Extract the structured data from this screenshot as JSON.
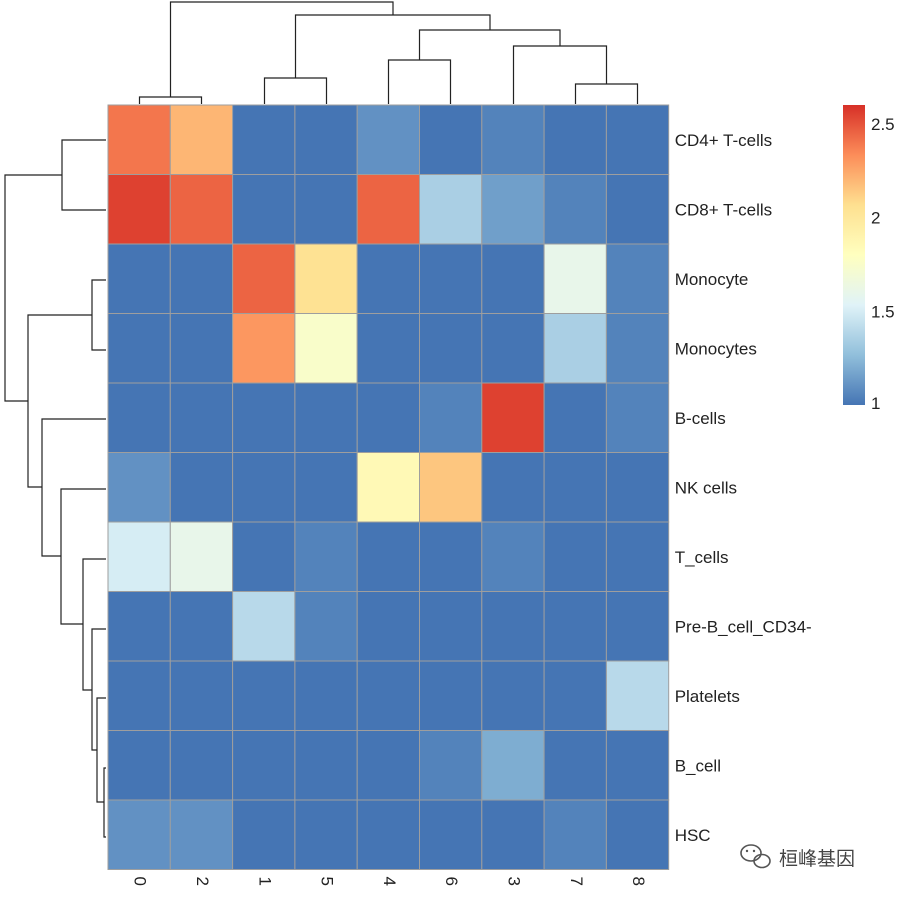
{
  "chart_data": {
    "type": "heatmap",
    "title": "",
    "rows": [
      "CD4+ T-cells",
      "CD8+ T-cells",
      "Monocyte",
      "Monocytes",
      "B-cells",
      "NK cells",
      "T_cells",
      "Pre-B_cell_CD34-",
      "Platelets",
      "B_cell",
      "HSC"
    ],
    "columns": [
      "0",
      "2",
      "1",
      "5",
      "4",
      "6",
      "3",
      "7",
      "8"
    ],
    "values": [
      [
        2.4,
        2.2,
        1.0,
        1.0,
        1.1,
        1.0,
        1.05,
        1.0,
        1.0
      ],
      [
        2.55,
        2.45,
        1.0,
        1.0,
        2.45,
        1.35,
        1.15,
        1.05,
        1.0
      ],
      [
        1.0,
        1.0,
        2.45,
        2.05,
        1.0,
        1.0,
        1.0,
        1.6,
        1.05
      ],
      [
        1.0,
        1.0,
        2.3,
        1.75,
        1.0,
        1.0,
        1.0,
        1.35,
        1.05
      ],
      [
        1.0,
        1.0,
        1.0,
        1.0,
        1.0,
        1.05,
        2.55,
        1.0,
        1.05
      ],
      [
        1.1,
        1.0,
        1.0,
        1.0,
        1.85,
        2.15,
        1.0,
        1.0,
        1.0
      ],
      [
        1.5,
        1.6,
        1.0,
        1.05,
        1.0,
        1.0,
        1.05,
        1.0,
        1.0
      ],
      [
        1.0,
        1.0,
        1.4,
        1.05,
        1.0,
        1.0,
        1.0,
        1.0,
        1.0
      ],
      [
        1.0,
        1.0,
        1.0,
        1.0,
        1.0,
        1.0,
        1.0,
        1.0,
        1.4
      ],
      [
        1.0,
        1.0,
        1.0,
        1.0,
        1.0,
        1.05,
        1.2,
        1.0,
        1.0
      ],
      [
        1.1,
        1.1,
        1.0,
        1.0,
        1.0,
        1.0,
        1.0,
        1.05,
        1.0
      ]
    ],
    "color_range": [
      1,
      2.6
    ],
    "color_scale": [
      "#4575b4",
      "#91bfdb",
      "#e0f3f8",
      "#ffffbf",
      "#fee090",
      "#fc8d59",
      "#d73027"
    ],
    "legend": {
      "ticks": [
        "1",
        "1.5",
        "2",
        "2.5"
      ],
      "tick_values": [
        1,
        1.5,
        2,
        2.5
      ],
      "placement": "right"
    },
    "row_dendrogram": true,
    "column_dendrogram": true,
    "grid": true,
    "cell_border_color": "#9e9e9e"
  },
  "watermark": {
    "text": "桓峰基因",
    "icon": "wechat-icon"
  }
}
